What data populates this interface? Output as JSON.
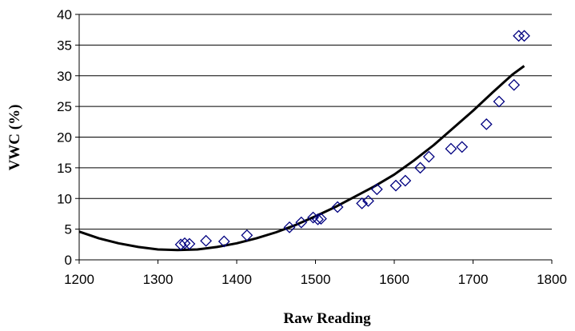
{
  "chart_data": {
    "type": "scatter",
    "title": "",
    "xlabel": "Raw Reading",
    "ylabel": "VWC (%)",
    "xlim": [
      1200,
      1800
    ],
    "ylim": [
      0,
      40
    ],
    "x_ticks": [
      "1200",
      "1300",
      "1400",
      "1500",
      "1600",
      "1700",
      "1800"
    ],
    "y_ticks": [
      "0",
      "5",
      "10",
      "15",
      "20",
      "25",
      "30",
      "35",
      "40"
    ],
    "grid": "horizontal",
    "legend": "none",
    "marker_color": "#000080",
    "curve_color": "#000000",
    "series": [
      {
        "type": "scatter",
        "marker": "diamond",
        "x": [
          1329,
          1334,
          1340,
          1361,
          1384,
          1413,
          1467,
          1482,
          1497,
          1503,
          1507,
          1528,
          1559,
          1567,
          1578,
          1602,
          1614,
          1633,
          1644,
          1672,
          1686,
          1717,
          1733,
          1752,
          1758,
          1765
        ],
        "y": [
          2.5,
          2.7,
          2.6,
          3.1,
          3.0,
          4.0,
          5.3,
          6.1,
          6.9,
          6.6,
          6.7,
          8.6,
          9.2,
          9.6,
          11.5,
          12.1,
          12.9,
          15.0,
          16.8,
          18.1,
          18.4,
          22.1,
          25.8,
          28.5,
          36.5,
          36.5
        ]
      },
      {
        "type": "line",
        "x": [
          1200,
          1225,
          1250,
          1275,
          1300,
          1325,
          1350,
          1375,
          1400,
          1425,
          1450,
          1475,
          1500,
          1525,
          1550,
          1575,
          1600,
          1625,
          1650,
          1675,
          1700,
          1725,
          1750,
          1765
        ],
        "y": [
          4.6,
          3.5,
          2.7,
          2.1,
          1.7,
          1.6,
          1.7,
          2.1,
          2.7,
          3.5,
          4.5,
          5.7,
          7.1,
          8.6,
          10.3,
          12.0,
          13.9,
          16.2,
          18.7,
          21.5,
          24.3,
          27.3,
          30.2,
          31.6
        ]
      }
    ]
  }
}
